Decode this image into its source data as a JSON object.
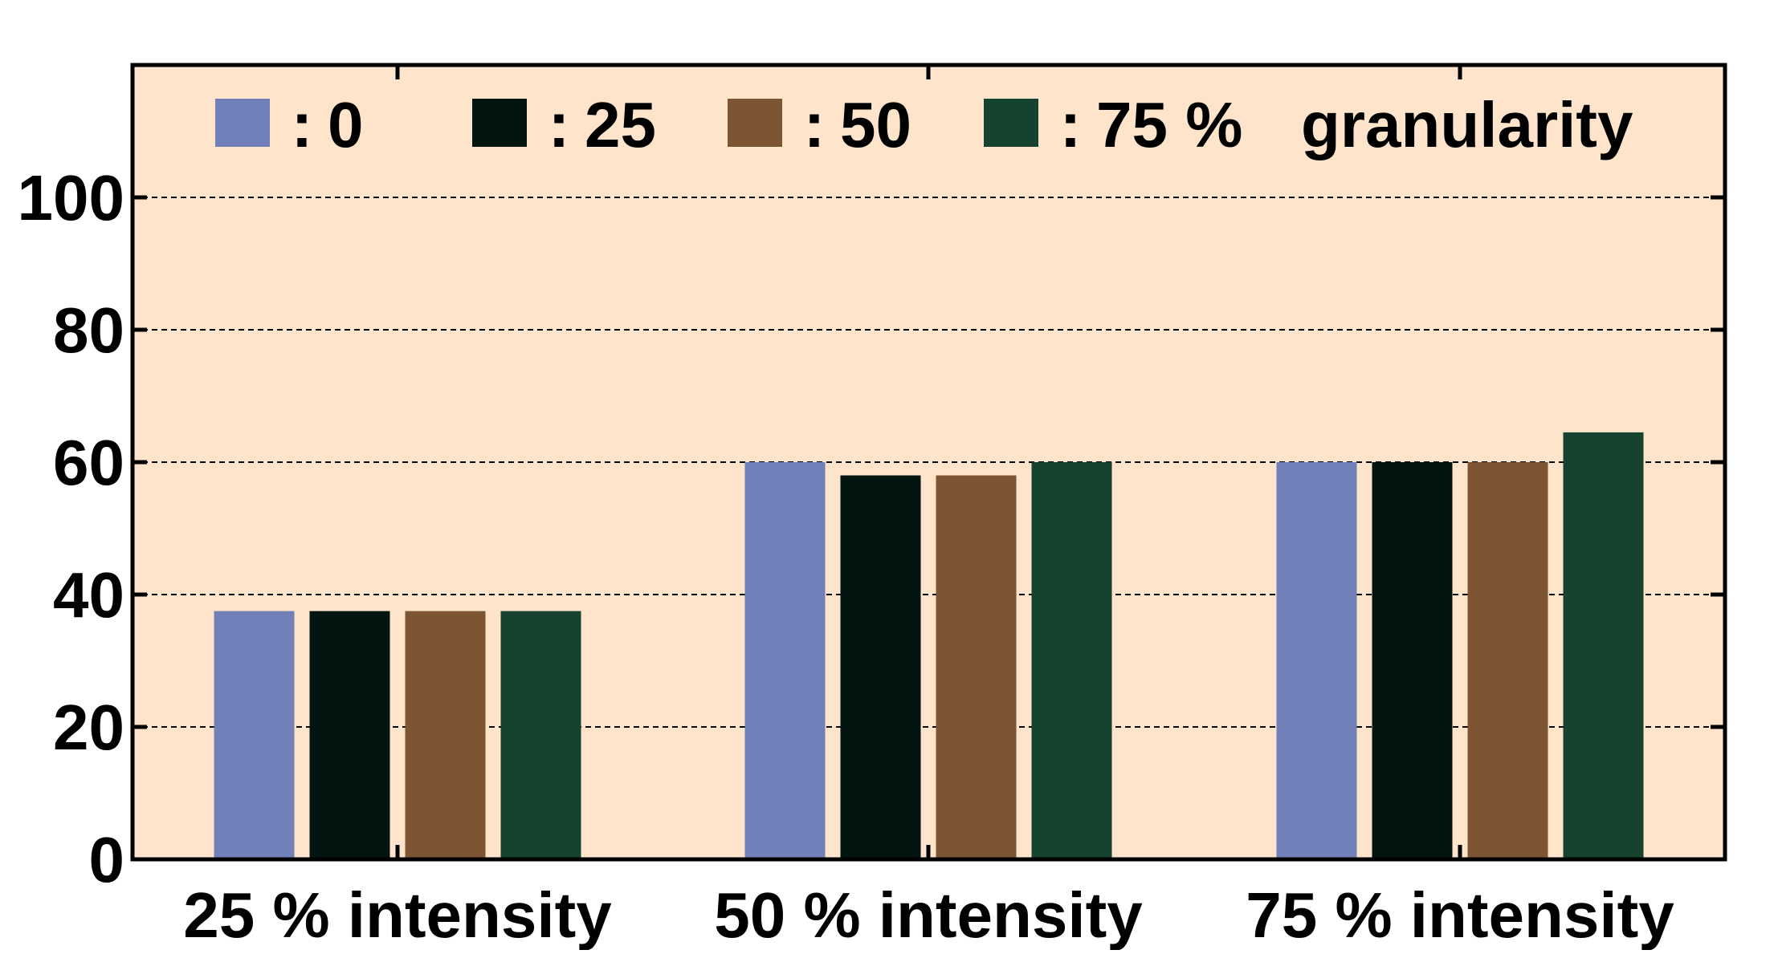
{
  "chart_data": {
    "type": "bar",
    "categories": [
      "25 % intensity",
      "50 % intensity",
      "75 % intensity"
    ],
    "series": [
      {
        "name": "0",
        "values": [
          37.5,
          60,
          60
        ]
      },
      {
        "name": "25",
        "values": [
          37.5,
          58,
          60
        ]
      },
      {
        "name": "50",
        "values": [
          37.5,
          58,
          60
        ]
      },
      {
        "name": "75 %",
        "values": [
          37.5,
          60,
          64.5
        ]
      }
    ],
    "legend_suffix": "granularity",
    "legend_separator": ":",
    "ylim": [
      0,
      120
    ],
    "yticks": [
      "0",
      "20",
      "40",
      "60",
      "80",
      "100"
    ],
    "grid": true,
    "legend_position": "top",
    "colors": {
      "plot_background": "#FDE4CB",
      "series": [
        "#7180B9",
        "#031510",
        "#7E5532",
        "#16432F"
      ],
      "gridline": "#000000",
      "axis": "#000000"
    }
  }
}
